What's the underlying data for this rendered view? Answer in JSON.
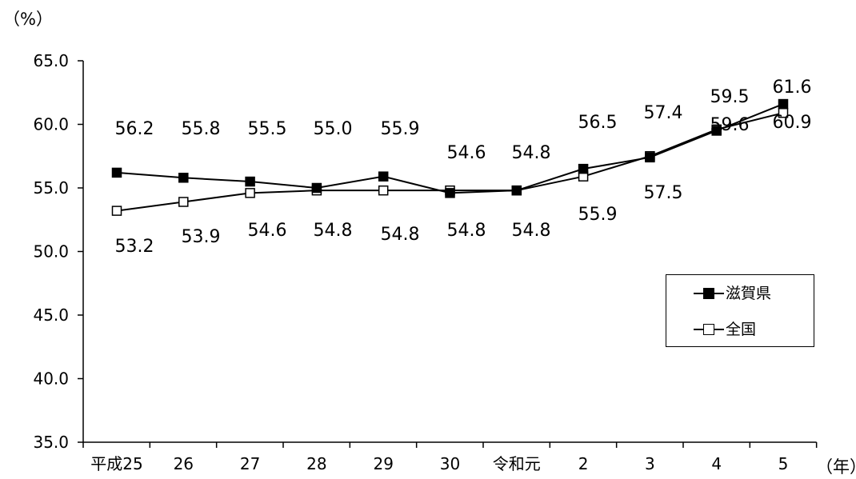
{
  "chart_data": {
    "type": "line",
    "y_unit": "（%）",
    "x_unit": "（年）",
    "categories": [
      "平成25",
      "26",
      "27",
      "28",
      "29",
      "30",
      "令和元",
      "2",
      "3",
      "4",
      "5"
    ],
    "ylim": [
      35.0,
      65.0
    ],
    "yticks": [
      "35.0",
      "40.0",
      "45.0",
      "50.0",
      "55.0",
      "60.0",
      "65.0"
    ],
    "grid": false,
    "legend_position": "right",
    "series": [
      {
        "name": "滋賀県",
        "marker": "filled-square",
        "color": "#000000",
        "values": [
          56.2,
          55.8,
          55.5,
          55.0,
          55.9,
          54.6,
          54.8,
          56.5,
          57.4,
          59.5,
          61.6
        ],
        "labels": [
          "56.2",
          "55.8",
          "55.5",
          "55.0",
          "55.9",
          "54.6",
          "54.8",
          "56.5",
          "57.4",
          "59.5",
          "61.6"
        ]
      },
      {
        "name": "全国",
        "marker": "hollow-square",
        "color": "#000000",
        "values": [
          53.2,
          53.9,
          54.6,
          54.8,
          54.8,
          54.8,
          54.8,
          55.9,
          57.5,
          59.6,
          60.9
        ],
        "labels": [
          "53.2",
          "53.9",
          "54.6",
          "54.8",
          "54.8",
          "54.8",
          "54.8",
          "55.9",
          "57.5",
          "59.6",
          "60.9"
        ]
      }
    ]
  }
}
